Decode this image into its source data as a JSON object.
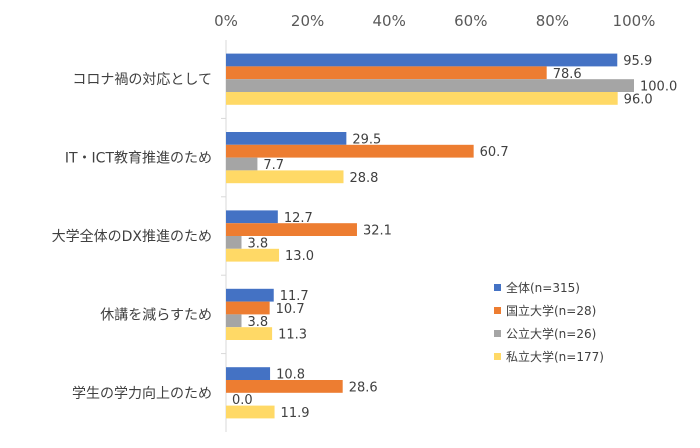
{
  "chart_data": {
    "type": "bar",
    "orientation": "horizontal",
    "title": "",
    "xlabel": "",
    "ylabel": "",
    "xlim": [
      0,
      100
    ],
    "x_ticks": [
      "0%",
      "20%",
      "40%",
      "60%",
      "80%",
      "100%"
    ],
    "x_tick_values": [
      0,
      20,
      40,
      60,
      80,
      100
    ],
    "categories": [
      "コロナ禍の対応として",
      "IT・ICT教育推進のため",
      "大学全体のDX推進のため",
      "休講を減らすため",
      "学生の学力向上のため"
    ],
    "series": [
      {
        "name": "全体(n=315)",
        "color": "#4472c4",
        "values": [
          95.9,
          29.5,
          12.7,
          11.7,
          10.8
        ],
        "labels": [
          "95.9",
          "29.5",
          "12.7",
          "11.7",
          "10.8"
        ]
      },
      {
        "name": "国立大学(n=28)",
        "color": "#ed7d31",
        "values": [
          78.6,
          60.7,
          32.1,
          10.7,
          28.6
        ],
        "labels": [
          "78.6",
          "60.7",
          "32.1",
          "10.7",
          "28.6"
        ]
      },
      {
        "name": "公立大学(n=26)",
        "color": "#a5a5a5",
        "values": [
          100.0,
          7.7,
          3.8,
          3.8,
          0.0
        ],
        "labels": [
          "100.0",
          "7.7",
          "3.8",
          "3.8",
          "0.0"
        ]
      },
      {
        "name": "私立大学(n=177)",
        "color": "#ffd966",
        "values": [
          96.0,
          28.8,
          13.0,
          11.3,
          11.9
        ],
        "labels": [
          "96.0",
          "28.8",
          "13.0",
          "11.3",
          "11.9"
        ]
      }
    ],
    "grid": false,
    "legend_position": "bottom-right"
  }
}
